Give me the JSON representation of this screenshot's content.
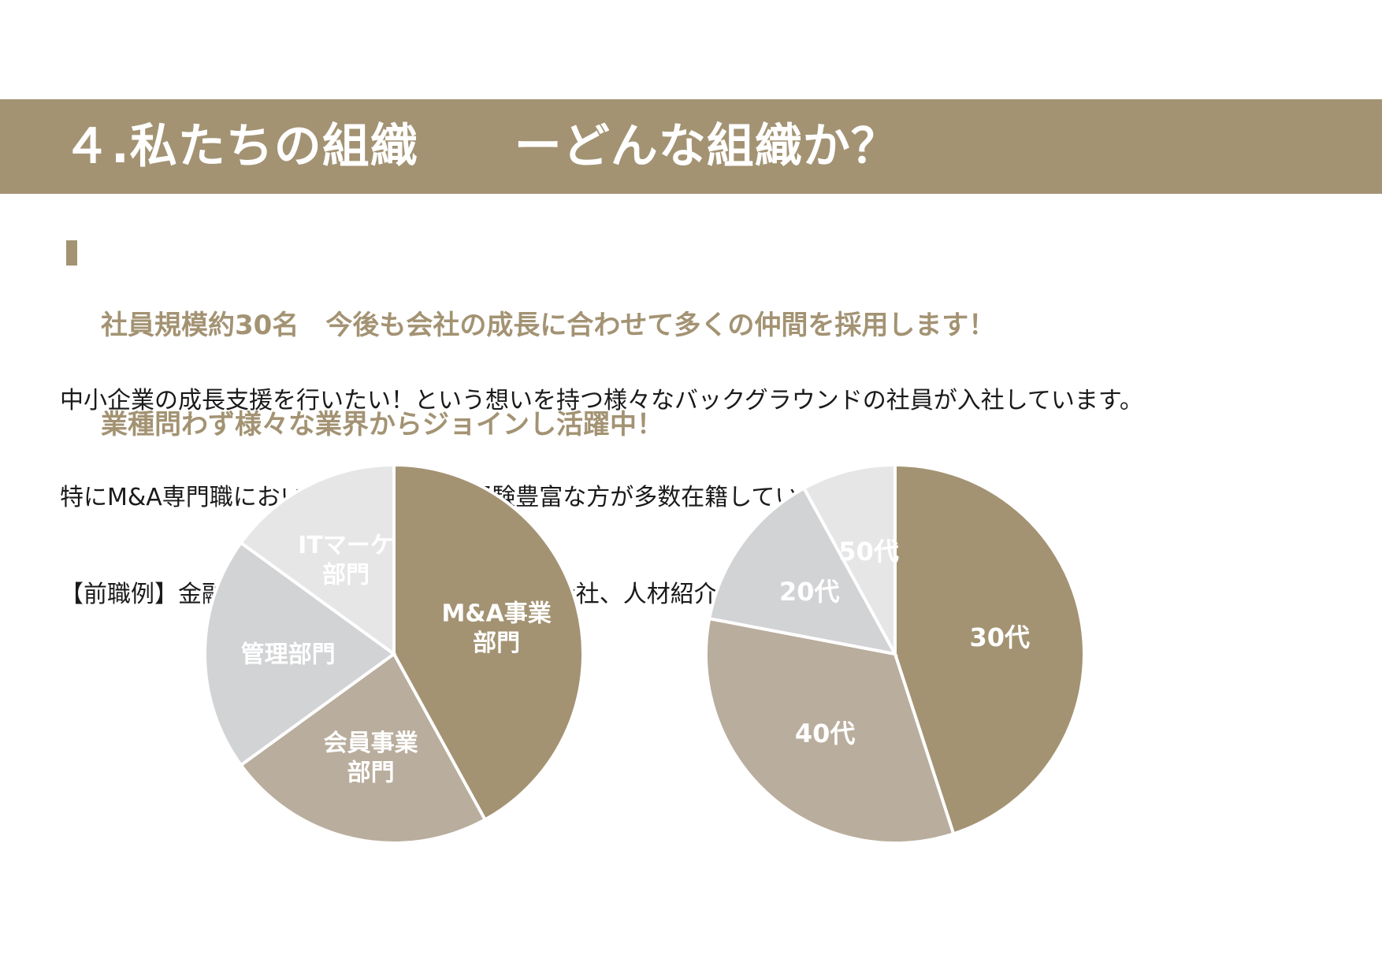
{
  "header": {
    "title": "４.私たちの組織　　ーどんな組織か？"
  },
  "lead": {
    "line1": "社員規模約30名　今後も会社の成長に合わせて多くの仲間を採用します！",
    "line2": "業種問わず様々な業界からジョインし活躍中！"
  },
  "body": {
    "line1": "中小企業の成長支援を行いたい！という想いを持つ様々なバックグラウンドの社員が入社しています。",
    "line2": "特にM&A専門職においては、幹部陣は経験豊富な方が多数在籍しています。",
    "line3": "【前職例】金融機関（銀行、証券）、M&A仲介会社、人材紹介etc"
  },
  "chart_data": [
    {
      "type": "pie",
      "title": "",
      "slices": [
        {
          "label": "M&A事業\n部門",
          "value": 42,
          "color": "#a39373"
        },
        {
          "label": "会員事業\n部門",
          "value": 23,
          "color": "#b9ad9d"
        },
        {
          "label": "管理部門",
          "value": 20,
          "color": "#d2d3d5"
        },
        {
          "label": "ITマーケ\n部門",
          "value": 15,
          "color": "#e6e6e6"
        }
      ]
    },
    {
      "type": "pie",
      "title": "",
      "slices": [
        {
          "label": "30代",
          "value": 45,
          "color": "#a39373"
        },
        {
          "label": "40代",
          "value": 33,
          "color": "#b9ad9d"
        },
        {
          "label": "20代",
          "value": 14,
          "color": "#d2d3d5"
        },
        {
          "label": "50代",
          "value": 8,
          "color": "#e6e6e6"
        }
      ]
    }
  ]
}
